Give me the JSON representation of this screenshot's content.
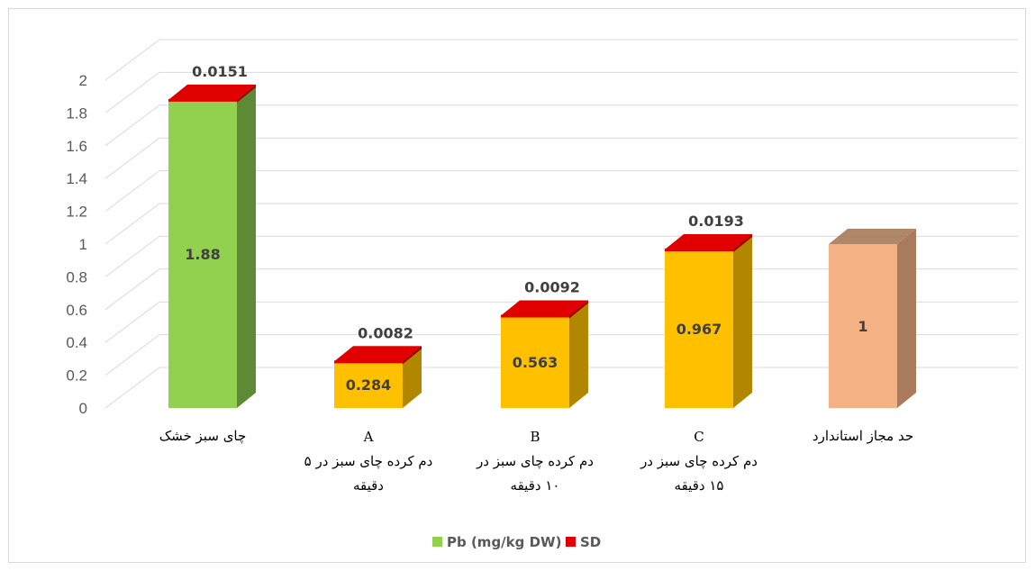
{
  "chart_data": {
    "type": "bar",
    "title": "",
    "xlabel": "",
    "ylabel": "",
    "ylim": [
      0,
      2
    ],
    "yticks": [
      "0",
      "0.2",
      "0.4",
      "0.6",
      "0.8",
      "1",
      "1.2",
      "1.4",
      "1.6",
      "1.8",
      "2"
    ],
    "grid": true,
    "legend_position": "bottom",
    "categories": [
      {
        "letter": "",
        "lines": [
          "چای سبز خشک"
        ]
      },
      {
        "letter": "A",
        "lines": [
          "دم کرده چای سبز در ۵",
          "دقیقه"
        ]
      },
      {
        "letter": "B",
        "lines": [
          "دم کرده چای سبز در",
          "۱۰ دقیقه"
        ]
      },
      {
        "letter": "C",
        "lines": [
          "دم کرده چای سبز در",
          "۱۵ دقیقه"
        ]
      },
      {
        "letter": "",
        "lines": [
          "حد مجاز استاندارد"
        ]
      }
    ],
    "series": [
      {
        "name": "Pb (mg/kg DW)",
        "values": [
          1.88,
          0.284,
          0.563,
          0.967,
          1
        ],
        "labels": [
          "1.88",
          "0.284",
          "0.563",
          "0.967",
          "1"
        ]
      },
      {
        "name": "SD",
        "values": [
          0.0151,
          0.0082,
          0.0092,
          0.0193,
          null
        ],
        "labels": [
          "0.0151",
          "0.0082",
          "0.0092",
          "0.0193",
          ""
        ]
      }
    ],
    "bar_colors": [
      {
        "front": "#92d050",
        "side": "#5e8a35"
      },
      {
        "front": "#ffc000",
        "side": "#b38600"
      },
      {
        "front": "#ffc000",
        "side": "#b38600"
      },
      {
        "front": "#ffc000",
        "side": "#b38600"
      },
      {
        "front": "#f4b183",
        "side": "#a97a5b"
      }
    ],
    "sd_colors": {
      "front": "#e00000",
      "side": "#9a0000"
    },
    "legend": [
      {
        "label": "Pb (mg/kg DW)",
        "color": "#92d050"
      },
      {
        "label": "SD",
        "color": "#e00000"
      }
    ]
  }
}
